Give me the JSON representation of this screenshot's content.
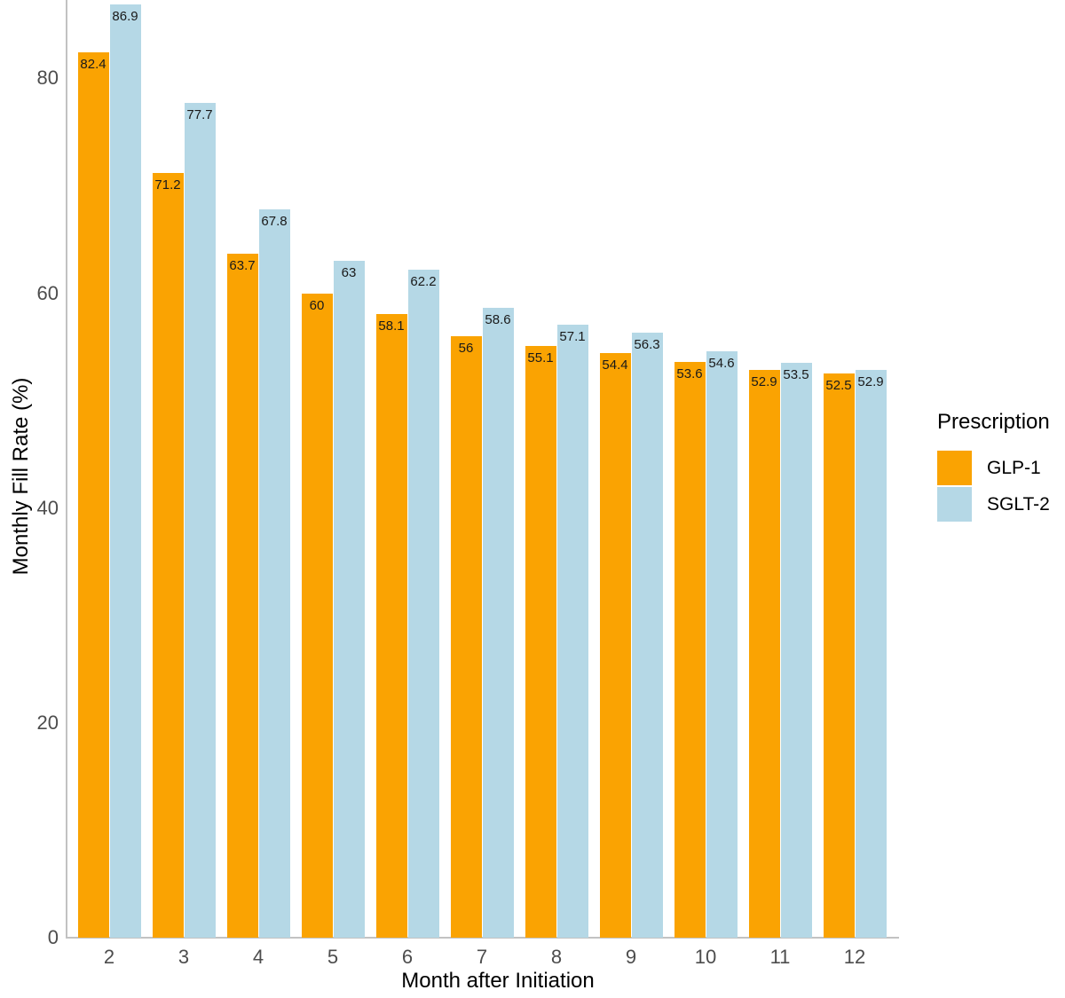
{
  "chart_data": {
    "type": "bar",
    "title": "",
    "xlabel": "Month after Initiation",
    "ylabel": "Monthly Fill Rate (%)",
    "categories": [
      2,
      3,
      4,
      5,
      6,
      7,
      8,
      9,
      10,
      11,
      12
    ],
    "series": [
      {
        "name": "GLP-1",
        "color": "#FAA302",
        "values": [
          82.4,
          71.2,
          63.7,
          60,
          58.1,
          56,
          55.1,
          54.4,
          53.6,
          52.9,
          52.5
        ]
      },
      {
        "name": "SGLT-2",
        "color": "#B5D8E6",
        "values": [
          86.9,
          77.7,
          67.8,
          63,
          62.2,
          58.6,
          57.1,
          56.3,
          54.6,
          53.5,
          52.9
        ]
      }
    ],
    "bar_value_labels": true,
    "ylim": [
      0,
      87.3
    ],
    "yticks": [
      0,
      20,
      40,
      60,
      80
    ],
    "grid": false,
    "legend": {
      "title": "Prescription",
      "position": "right"
    },
    "colors": {
      "axis_line": "#c2c2c2",
      "tick_text": "#4d4d4d",
      "label_text": "#1a1a1a"
    }
  }
}
